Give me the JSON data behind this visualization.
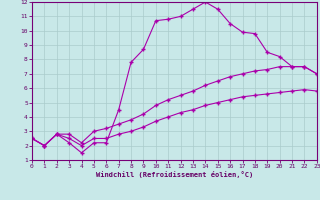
{
  "xlabel": "Windchill (Refroidissement éolien,°C)",
  "bg_color": "#c8e8e8",
  "line_color": "#aa00aa",
  "grid_color": "#aacccc",
  "xlim": [
    0,
    23
  ],
  "ylim": [
    1,
    12
  ],
  "xticks": [
    0,
    1,
    2,
    3,
    4,
    5,
    6,
    7,
    8,
    9,
    10,
    11,
    12,
    13,
    14,
    15,
    16,
    17,
    18,
    19,
    20,
    21,
    22,
    23
  ],
  "yticks": [
    1,
    2,
    3,
    4,
    5,
    6,
    7,
    8,
    9,
    10,
    11,
    12
  ],
  "line1_x": [
    0,
    1,
    2,
    3,
    4,
    5,
    6,
    7,
    8,
    9,
    10,
    11,
    12,
    13,
    14,
    15,
    16,
    17,
    18,
    19,
    20,
    21,
    22,
    23
  ],
  "line1_y": [
    2.5,
    2.0,
    2.8,
    2.2,
    1.5,
    2.2,
    2.2,
    4.5,
    7.8,
    8.7,
    10.7,
    10.8,
    11.0,
    11.5,
    12.0,
    11.5,
    10.5,
    9.9,
    9.8,
    8.5,
    8.2,
    7.5,
    7.5,
    7.0
  ],
  "line2_x": [
    0,
    1,
    2,
    3,
    4,
    5,
    6,
    7,
    8,
    9,
    10,
    11,
    12,
    13,
    14,
    15,
    16,
    17,
    18,
    19,
    20,
    21,
    22,
    23
  ],
  "line2_y": [
    2.5,
    2.0,
    2.8,
    2.8,
    2.2,
    3.0,
    3.2,
    3.5,
    3.8,
    4.2,
    4.8,
    5.2,
    5.5,
    5.8,
    6.2,
    6.5,
    6.8,
    7.0,
    7.2,
    7.3,
    7.5,
    7.5,
    7.5,
    7.0
  ],
  "line3_x": [
    0,
    1,
    2,
    3,
    4,
    5,
    6,
    7,
    8,
    9,
    10,
    11,
    12,
    13,
    14,
    15,
    16,
    17,
    18,
    19,
    20,
    21,
    22,
    23
  ],
  "line3_y": [
    2.5,
    2.0,
    2.8,
    2.5,
    2.0,
    2.5,
    2.5,
    2.8,
    3.0,
    3.3,
    3.7,
    4.0,
    4.3,
    4.5,
    4.8,
    5.0,
    5.2,
    5.4,
    5.5,
    5.6,
    5.7,
    5.8,
    5.9,
    5.8
  ]
}
